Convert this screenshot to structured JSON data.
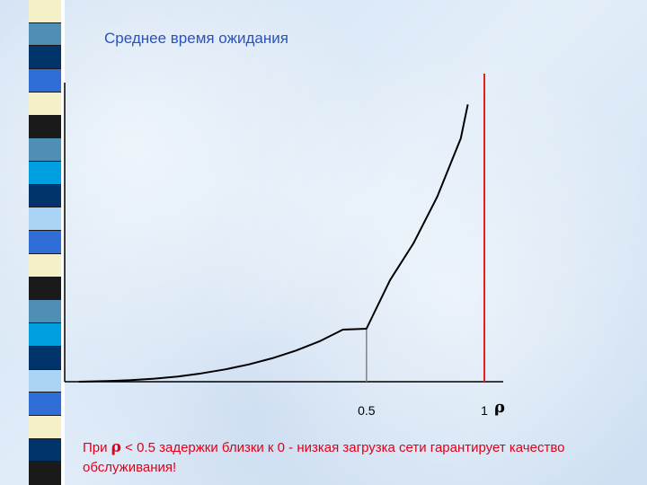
{
  "chart_data": {
    "type": "line",
    "title": "Среднее время ожидания",
    "xlabel": "ρ",
    "ylabel": "",
    "xlim": [
      -0.78,
      1.08
    ],
    "ylim": [
      0,
      1
    ],
    "grid": false,
    "series": [
      {
        "style": "curve",
        "x": [
          -0.72,
          -0.6,
          -0.5,
          -0.4,
          -0.3,
          -0.2,
          -0.1,
          0.0,
          0.1,
          0.2,
          0.3,
          0.4,
          0.5,
          0.6,
          0.7,
          0.8,
          0.9,
          0.93
        ],
        "y": [
          0.0,
          0.002,
          0.005,
          0.01,
          0.017,
          0.027,
          0.04,
          0.056,
          0.076,
          0.101,
          0.131,
          0.169,
          0.172,
          0.33,
          0.45,
          0.6,
          0.79,
          0.9
        ]
      }
    ],
    "ticks": [
      {
        "x": 0.5,
        "label": "0.5"
      },
      {
        "x": 1,
        "label": "1"
      }
    ],
    "reference_lines": [
      {
        "x": 0.5,
        "y_top": 0.172,
        "color": "#808080"
      },
      {
        "x": 1,
        "y_top": 1.0,
        "color": "#e02020"
      }
    ]
  },
  "note": {
    "prefix": "При ",
    "symbol": "ρ",
    "text": "  < 0.5 задержки близки к 0 - низкая загрузка сети гарантирует качество обслуживания!"
  },
  "colors": {
    "title": "#2a52be",
    "note": "#e0001b",
    "stripes": [
      "#f5f0c8",
      "#4f8fb5",
      "#00346b",
      "#2e6ed6",
      "#f5f0c8",
      "#1a1a1a",
      "#4f8fb5",
      "#00a0e0",
      "#00346b",
      "#a9d4f5",
      "#2e6ed6",
      "#f5f0c8",
      "#1a1a1a",
      "#4f8fb5",
      "#00a0e0",
      "#00346b",
      "#a9d4f5",
      "#2e6ed6",
      "#f5f0c8",
      "#00346b",
      "#1a1a1a"
    ]
  }
}
